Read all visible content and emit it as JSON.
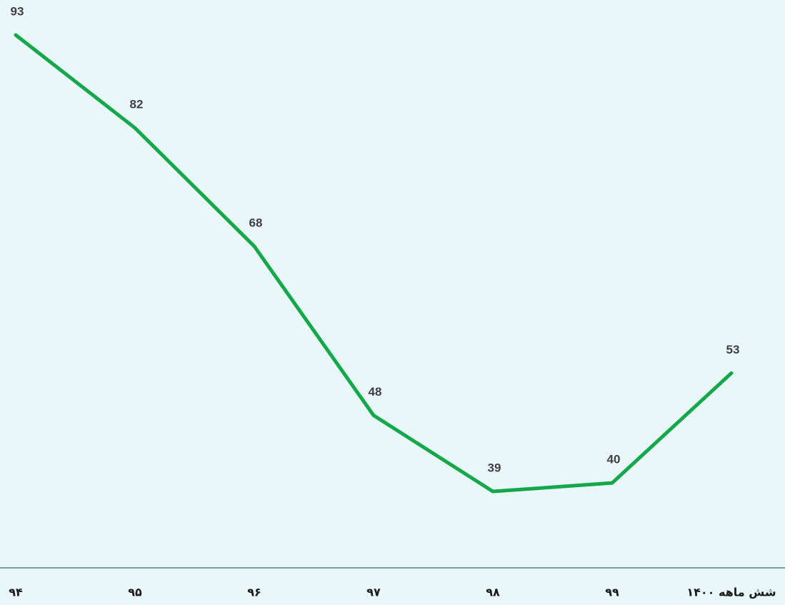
{
  "chart_data": {
    "type": "line",
    "categories": [
      "۹۴",
      "۹۵",
      "۹۶",
      "۹۷",
      "۹۸",
      "۹۹",
      "شش ماهه ۱۴۰۰"
    ],
    "series": [
      {
        "color": "#14a84b",
        "values": [
          93,
          82,
          68,
          48,
          39,
          40,
          53
        ]
      }
    ]
  }
}
